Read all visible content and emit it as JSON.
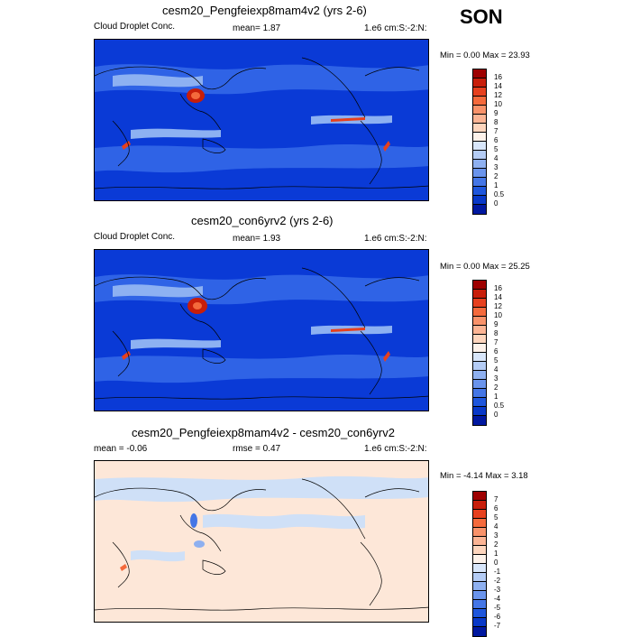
{
  "season": "SON",
  "panels": [
    {
      "id": "exp",
      "title": "cesm20_Pengfeiexp8mam4v2 (yrs 2-6)",
      "left_label": "Cloud Droplet Conc.",
      "center_label": "mean=   1.87",
      "right_label": "1.e6 cm:S:-2:N:",
      "minmax": "Min =   0.00 Max =  23.93",
      "ticks": [
        "16",
        "14",
        "12",
        "10",
        "9",
        "8",
        "7",
        "6",
        "5",
        "4",
        "3",
        "2",
        "1",
        "0.5",
        "0"
      ],
      "colors": [
        "#9e0000",
        "#c81e0a",
        "#e6401e",
        "#f46a3c",
        "#f8926a",
        "#fbb494",
        "#fdd5bd",
        "#fdf2ea",
        "#d8e6fa",
        "#b4ccf5",
        "#8eb0f0",
        "#6a94ec",
        "#4476e6",
        "#1e56dc",
        "#0838c8",
        "#0018a0"
      ]
    },
    {
      "id": "ctl",
      "title": "cesm20_con6yrv2 (yrs 2-6)",
      "left_label": "Cloud Droplet Conc.",
      "center_label": "mean=   1.93",
      "right_label": "1.e6 cm:S:-2:N:",
      "minmax": "Min =   0.00 Max =  25.25",
      "ticks": [
        "16",
        "14",
        "12",
        "10",
        "9",
        "8",
        "7",
        "6",
        "5",
        "4",
        "3",
        "2",
        "1",
        "0.5",
        "0"
      ],
      "colors": [
        "#9e0000",
        "#c81e0a",
        "#e6401e",
        "#f46a3c",
        "#f8926a",
        "#fbb494",
        "#fdd5bd",
        "#fdf2ea",
        "#d8e6fa",
        "#b4ccf5",
        "#8eb0f0",
        "#6a94ec",
        "#4476e6",
        "#1e56dc",
        "#0838c8",
        "#0018a0"
      ]
    },
    {
      "id": "diff",
      "title": "cesm20_Pengfeiexp8mam4v2 - cesm20_con6yrv2",
      "left_label": "mean =  -0.06",
      "center_label": "rmse =   0.47",
      "right_label": "1.e6 cm:S:-2:N:",
      "minmax": "Min =  -4.14 Max =   3.18",
      "ticks": [
        "7",
        "6",
        "5",
        "4",
        "3",
        "2",
        "1",
        "0",
        "-1",
        "-2",
        "-3",
        "-4",
        "-5",
        "-6",
        "-7"
      ],
      "colors": [
        "#9e0000",
        "#c81e0a",
        "#e6401e",
        "#f46a3c",
        "#f8926a",
        "#fbb494",
        "#fdd5bd",
        "#fdf2ea",
        "#d8e6fa",
        "#b4ccf5",
        "#8eb0f0",
        "#6a94ec",
        "#4476e6",
        "#1e56dc",
        "#0838c8",
        "#0018a0"
      ]
    }
  ],
  "map_colors": {
    "ocean_deep": "#0a3ad6",
    "ocean_mid": "#2f63e6",
    "ocean_light": "#8db1f2",
    "high_red": "#c81e0a",
    "orange": "#f46a3c",
    "diff_bg": "#fde7d8",
    "diff_blue": "#cfe0f7"
  }
}
